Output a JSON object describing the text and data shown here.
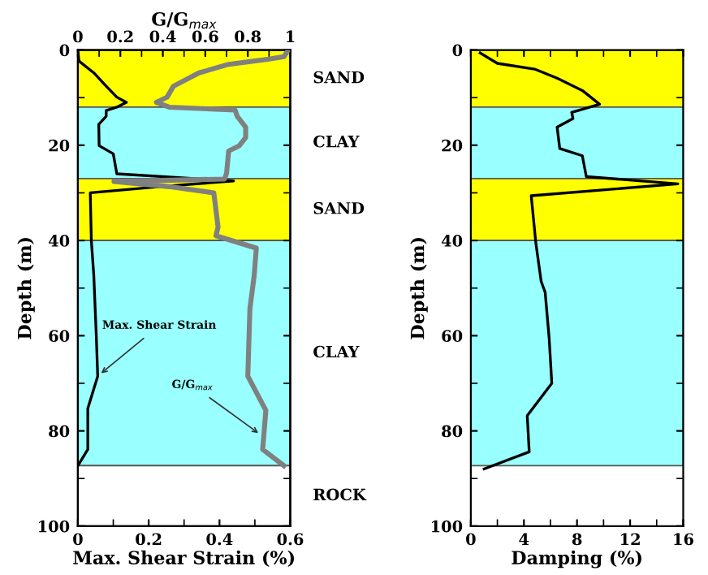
{
  "chart_data": [
    {
      "type": "line",
      "xlabel": "Max. Shear Strain (%)",
      "x2label": "G/G$_{max}$",
      "ylabel": "Depth (m)",
      "xlim": [
        0,
        0.6
      ],
      "xticks": [
        0,
        0.2,
        0.4,
        0.6
      ],
      "x2lim": [
        0,
        1
      ],
      "x2ticks": [
        0,
        0.2,
        0.4,
        0.6,
        0.8,
        1
      ],
      "ylim": [
        100,
        0
      ],
      "yticks": [
        0,
        20,
        40,
        60,
        80,
        100
      ],
      "series": [
        {
          "color": "#000000",
          "x": [
            0,
            0.003,
            0.045,
            0.08,
            0.11,
            0.137,
            0.11,
            0.08,
            0.08,
            0.059,
            0.06,
            0.1,
            0.11,
            0.44,
            0.23,
            0.035,
            0.038,
            0.045,
            0.052,
            0.056,
            0.028,
            0.028,
            0
          ],
          "values": [
            0,
            2.3,
            4.8,
            7.6,
            9.9,
            11,
            12,
            12.7,
            13.9,
            15.6,
            20.1,
            21.8,
            26,
            27.5,
            28.7,
            30,
            40,
            47.4,
            60,
            68.5,
            75.3,
            83.9,
            87.3
          ]
        },
        {
          "color": "#808080",
          "axis": "x2",
          "x": [
            0.99,
            0.97,
            0.9,
            0.71,
            0.57,
            0.45,
            0.42,
            0.37,
            0.43,
            0.74,
            0.75,
            0.79,
            0.79,
            0.76,
            0.71,
            0.7,
            0.69,
            0.17,
            0.43,
            0.64,
            0.66,
            0.65,
            0.84,
            0.83,
            0.81,
            0.8,
            0.885,
            0.87,
            0.97
          ],
          "values": [
            0,
            1.4,
            1.9,
            3,
            4.8,
            7.6,
            9.9,
            11,
            12,
            12.6,
            13.9,
            16.2,
            18.4,
            20.1,
            21.2,
            25.9,
            27.1,
            27.6,
            28.7,
            30,
            37.2,
            39,
            41.6,
            47.4,
            54.3,
            68.5,
            75.7,
            83.9,
            87.3
          ]
        }
      ],
      "bands": [
        {
          "axis": "y",
          "from": 0,
          "to": 12,
          "label": "SAND",
          "color": "#ffff00"
        },
        {
          "axis": "y",
          "from": 12,
          "to": 27,
          "label": "CLAY",
          "color": "#99ffff"
        },
        {
          "axis": "y",
          "from": 27,
          "to": 40,
          "label": "SAND",
          "color": "#ffff00"
        },
        {
          "axis": "y",
          "from": 40,
          "to": 87.3,
          "label": "CLAY",
          "color": "#99ffff"
        },
        {
          "axis": "y",
          "from": 87.3,
          "to": 100,
          "label": "ROCK",
          "color": "#ffffff"
        }
      ],
      "annotations": [
        {
          "text": "Max. Shear Strain",
          "x": 0.056,
          "y": 68.5
        },
        {
          "text": "G/G$_{max}$",
          "x": 0.52,
          "y": 81
        }
      ]
    },
    {
      "type": "line",
      "xlabel": "Damping (%)",
      "ylabel": "Depth (m)",
      "xlim": [
        0,
        16
      ],
      "xticks": [
        0,
        4,
        8,
        12,
        16
      ],
      "ylim": [
        100,
        0
      ],
      "yticks": [
        0,
        20,
        40,
        60,
        80,
        100
      ],
      "series": [
        {
          "color": "#000000",
          "x": [
            0.7,
            2.0,
            4.8,
            6.5,
            8.4,
            9.7,
            7.6,
            7.7,
            6.5,
            6.7,
            8.4,
            8.7,
            15.6,
            4.55,
            4.9,
            5.3,
            5.6,
            5.9,
            6.1,
            4.25,
            4.4,
            1.0
          ],
          "values": [
            0.6,
            2.8,
            4.0,
            5.9,
            8.5,
            11.4,
            13.1,
            14.4,
            16.2,
            20.7,
            22.2,
            26.6,
            28.1,
            30.6,
            40.6,
            48.6,
            50.9,
            60.5,
            70,
            76.8,
            84.4,
            88
          ]
        }
      ],
      "bands": [
        {
          "axis": "y",
          "from": 0,
          "to": 12,
          "color": "#ffff00"
        },
        {
          "axis": "y",
          "from": 12,
          "to": 27,
          "color": "#99ffff"
        },
        {
          "axis": "y",
          "from": 27,
          "to": 40,
          "color": "#ffff00"
        },
        {
          "axis": "y",
          "from": 40,
          "to": 87.3,
          "color": "#99ffff"
        }
      ]
    }
  ]
}
